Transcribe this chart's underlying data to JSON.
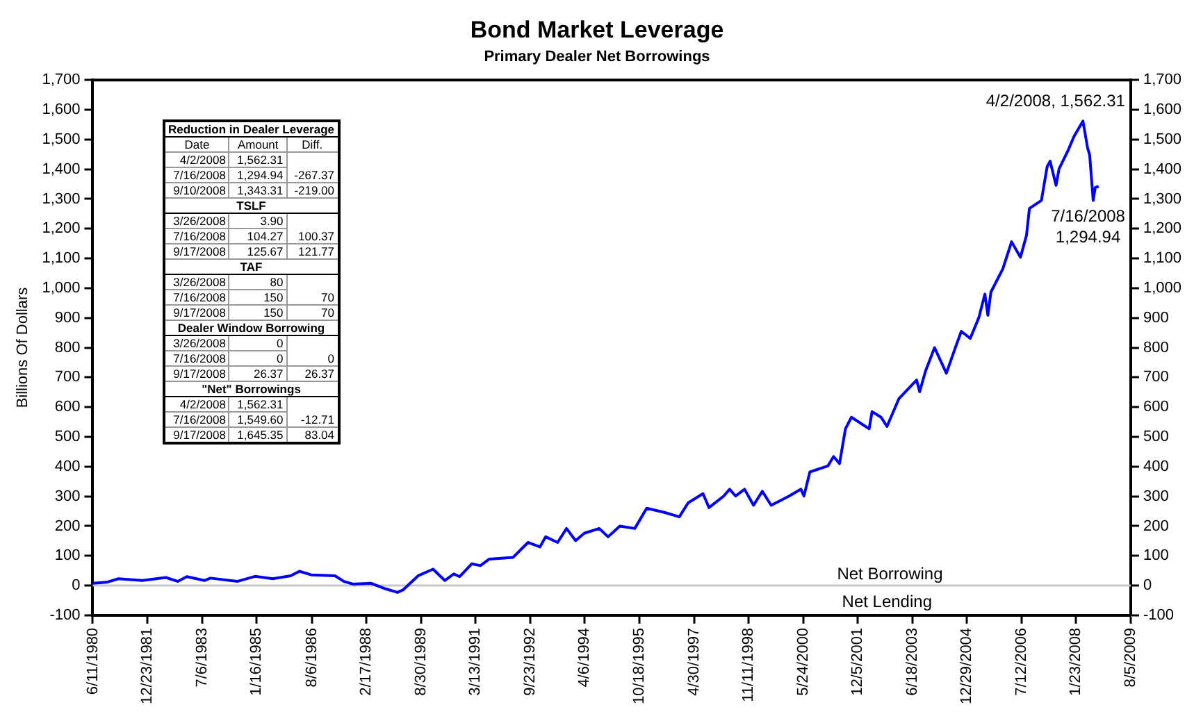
{
  "chart_data": {
    "type": "line",
    "title": "Bond Market Leverage",
    "subtitle": "Primary Dealer Net Borrowings",
    "ylabel": "Billions Of Dollars",
    "x": [
      "1980-06-11",
      "1980-11",
      "1981-03",
      "1981-11",
      "1982-07",
      "1982-11",
      "1983-02",
      "1983-08",
      "1983-10",
      "1984-07",
      "1985-01",
      "1985-07",
      "1986-01",
      "1986-04",
      "1986-08",
      "1987-04",
      "1987-07",
      "1987-10",
      "1988-04",
      "1988-09",
      "1989-01",
      "1989-03",
      "1989-08",
      "1990-01",
      "1990-05",
      "1990-08",
      "1990-10",
      "1991-02",
      "1991-05",
      "1991-08",
      "1992-04",
      "1992-09",
      "1993-01",
      "1993-03",
      "1993-07",
      "1993-10",
      "1994-01",
      "1994-04",
      "1994-09",
      "1994-12",
      "1995-04",
      "1995-09",
      "1996-01",
      "1996-07",
      "1996-12",
      "1997-03",
      "1997-08",
      "1997-10",
      "1998-03",
      "1998-05",
      "1998-07",
      "1998-10",
      "1999-01",
      "1999-04",
      "1999-07",
      "2000-01",
      "2000-05",
      "2000-06",
      "2000-08",
      "2001-02",
      "2001-04",
      "2001-06",
      "2001-08",
      "2001-10",
      "2002-04",
      "2002-05",
      "2002-08",
      "2002-10",
      "2003-02",
      "2003-08",
      "2003-09",
      "2003-11",
      "2004-02",
      "2004-06",
      "2004-09",
      "2004-11",
      "2005-02",
      "2005-05",
      "2005-07",
      "2005-08",
      "2005-09",
      "2006-01",
      "2006-04",
      "2006-07",
      "2006-09",
      "2006-10",
      "2007-02",
      "2007-04",
      "2007-05",
      "2007-07",
      "2007-08",
      "2007-11",
      "2008-01",
      "2008-04-02",
      "2008-05-20",
      "2008-06-10",
      "2008-07-16",
      "2008-08-06",
      "2008-09-10"
    ],
    "series": [
      {
        "color": "#0000ff",
        "values": [
          8,
          11,
          23,
          17,
          27,
          14,
          30,
          17,
          25,
          14,
          31,
          23,
          33,
          48,
          36,
          33,
          14,
          5,
          8,
          -11,
          -23,
          -14,
          33,
          55,
          17,
          39,
          30,
          73,
          67,
          89,
          95,
          145,
          130,
          164,
          145,
          192,
          151,
          176,
          192,
          164,
          200,
          192,
          260,
          246,
          231,
          278,
          309,
          262,
          301,
          324,
          301,
          324,
          270,
          317,
          270,
          301,
          324,
          301,
          382,
          402,
          434,
          410,
          527,
          566,
          527,
          585,
          566,
          535,
          629,
          691,
          652,
          722,
          800,
          714,
          800,
          855,
          831,
          902,
          980,
          909,
          987,
          1065,
          1156,
          1104,
          1178,
          1268,
          1295,
          1409,
          1427,
          1346,
          1401,
          1463,
          1510,
          1562,
          1471,
          1448,
          1295,
          1338,
          1343
        ]
      }
    ],
    "marker": "none",
    "line_style": "solid",
    "grid": false,
    "legend": false,
    "xlim": [
      "1980-06-11",
      "2009-08-05"
    ],
    "xticks": [
      {
        "value": "1980-06-11",
        "label": "6/11/1980"
      },
      {
        "value": "1981-12-23",
        "label": "12/23/1981"
      },
      {
        "value": "1983-07-06",
        "label": "7/6/1983"
      },
      {
        "value": "1985-01-16",
        "label": "1/16/1985"
      },
      {
        "value": "1986-08-06",
        "label": "8/6/1986"
      },
      {
        "value": "1988-02-17",
        "label": "2/17/1988"
      },
      {
        "value": "1989-08-30",
        "label": "8/30/1989"
      },
      {
        "value": "1991-03-13",
        "label": "3/13/1991"
      },
      {
        "value": "1992-09-23",
        "label": "9/23/1992"
      },
      {
        "value": "1994-04-06",
        "label": "4/6/1994"
      },
      {
        "value": "1995-10-18",
        "label": "10/18/1995"
      },
      {
        "value": "1997-04-30",
        "label": "4/30/1997"
      },
      {
        "value": "1998-11-11",
        "label": "11/11/1998"
      },
      {
        "value": "2000-05-24",
        "label": "5/24/2000"
      },
      {
        "value": "2001-12-05",
        "label": "12/5/2001"
      },
      {
        "value": "2003-06-18",
        "label": "6/18/2003"
      },
      {
        "value": "2004-12-29",
        "label": "12/29/2004"
      },
      {
        "value": "2006-07-12",
        "label": "7/12/2006"
      },
      {
        "value": "2008-01-23",
        "label": "1/23/2008"
      },
      {
        "value": "2009-08-05",
        "label": "8/5/2009"
      }
    ],
    "ylim": [
      -100,
      1700
    ],
    "yticks": [
      {
        "value": -100,
        "label": "-100"
      },
      {
        "value": 0,
        "label": "0"
      },
      {
        "value": 100,
        "label": "100"
      },
      {
        "value": 200,
        "label": "200"
      },
      {
        "value": 300,
        "label": "300"
      },
      {
        "value": 400,
        "label": "400"
      },
      {
        "value": 500,
        "label": "500"
      },
      {
        "value": 600,
        "label": "600"
      },
      {
        "value": 700,
        "label": "700"
      },
      {
        "value": 800,
        "label": "800"
      },
      {
        "value": 900,
        "label": "900"
      },
      {
        "value": 1000,
        "label": "1,000"
      },
      {
        "value": 1100,
        "label": "1,100"
      },
      {
        "value": 1200,
        "label": "1,200"
      },
      {
        "value": 1300,
        "label": "1,300"
      },
      {
        "value": 1400,
        "label": "1,400"
      },
      {
        "value": 1500,
        "label": "1,500"
      },
      {
        "value": 1600,
        "label": "1,600"
      },
      {
        "value": 1700,
        "label": "1,700"
      }
    ],
    "y2lim": [
      -100,
      1700
    ],
    "y2ticks": [
      {
        "value": -100,
        "label": "-100"
      },
      {
        "value": 0,
        "label": "0"
      },
      {
        "value": 100,
        "label": "100"
      },
      {
        "value": 200,
        "label": "200"
      },
      {
        "value": 300,
        "label": "300"
      },
      {
        "value": 400,
        "label": "400"
      },
      {
        "value": 500,
        "label": "500"
      },
      {
        "value": 600,
        "label": "600"
      },
      {
        "value": 700,
        "label": "700"
      },
      {
        "value": 800,
        "label": "800"
      },
      {
        "value": 900,
        "label": "900"
      },
      {
        "value": 1000,
        "label": "1,000"
      },
      {
        "value": 1100,
        "label": "1,100"
      },
      {
        "value": 1200,
        "label": "1,200"
      },
      {
        "value": 1300,
        "label": "1,300"
      },
      {
        "value": 1400,
        "label": "1,400"
      },
      {
        "value": 1500,
        "label": "1,500"
      },
      {
        "value": 1600,
        "label": "1,600"
      },
      {
        "value": 1700,
        "label": "1,700"
      }
    ],
    "ref_lines": [
      {
        "axis": "y",
        "value": 0,
        "label": "Net Borrowing",
        "color": "#c8c8c8"
      }
    ],
    "annotations": [
      {
        "text": "4/2/2008, 1,562.31",
        "x": "2008-04-02",
        "y": 1562.31
      },
      {
        "text": "7/16/2008\n1,294.94",
        "x": "2008-07-16",
        "y": 1294.94
      },
      {
        "text": "Net Lending",
        "x": "2002-10",
        "y": 0
      },
      "Reduction in Dealer Leverage",
      "Date",
      "Amount",
      "Diff.",
      "4/2/2008",
      "1,562.31",
      "7/16/2008",
      "1,294.94",
      "-267.37",
      "9/10/2008",
      "1,343.31",
      "-219.00",
      "TSLF",
      "3/26/2008",
      "3.90",
      "7/16/2008",
      "104.27",
      "100.37",
      "9/17/2008",
      "125.67",
      "121.77",
      "TAF",
      "3/26/2008",
      "80",
      "7/16/2008",
      "150",
      "70",
      "9/17/2008",
      "150",
      "70",
      "Dealer Window Borrowing",
      "3/26/2008",
      "0",
      "7/16/2008",
      "0",
      "0",
      "9/17/2008",
      "26.37",
      "26.37",
      "\"Net\" Borrowings",
      "4/2/2008",
      "1,562.31",
      "7/16/2008",
      "1,549.60",
      "-12.71",
      "9/17/2008",
      "1,645.35",
      "83.04"
    ]
  }
}
